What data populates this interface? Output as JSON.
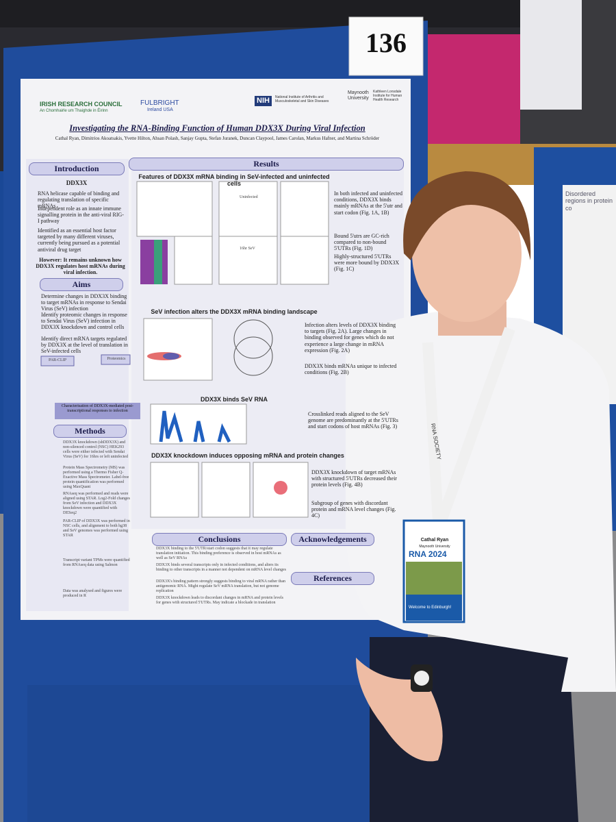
{
  "board_number": "136",
  "poster": {
    "logos": [
      "IRISH RESEARCH COUNCIL",
      "An Chomhairle um Thaighde in Éirinn",
      "FULBRIGHT",
      "Ireland USA",
      "NIH",
      "National Institute of Arthritis and Musculoskeletal and Skin Diseases",
      "Maynooth University",
      "Kathleen Lonsdale Institute for Human Health Research"
    ],
    "title": "Investigating the RNA-Binding Function of Human DDX3X During Viral Infection",
    "authors": "Cathal Ryan, Dimitrios Akoatsakis, Yvette Hilton, Ahsan Polash, Sanjay Gupta, Stefan Juranek, Duncan Claypool, James Carolan, Markus Hafner, and Martina Schröder",
    "introduction": {
      "heading": "Introduction",
      "subheading": "DDX3X",
      "bullets": [
        "RNA helicase capable of binding and regulating translation of specific mRNAs",
        "Independent role as an innate immune signalling protein in the anti-viral RIG-I pathway",
        "Identified as an essential host factor targeted by many different viruses, currently being pursued as a potential antiviral drug target"
      ],
      "question": "However: It remains unknown how DDX3X regulates host mRNAs during viral infection."
    },
    "aims": {
      "heading": "Aims",
      "bullets": [
        "Determine changes in DDX3X binding to target mRNAs in response to Sendai Virus (SeV) infection",
        "Identify proteomic changes in response to Sendai Virus (SeV) infection in DDX3X knockdown and control cells",
        "Identify direct mRNA targets regulated by DDX3X at the level of translation in SeV-infected cells"
      ],
      "boxes": [
        "PAR-CLIP",
        "Proteomics"
      ],
      "summary": "Characterisation of DDX3X-mediated post-transcriptional responses to infection"
    },
    "methods": {
      "heading": "Methods",
      "bullets": [
        "DDX3X knockdown (shDDX3X) and non-silenced control (NSC) HEK293 cells were either infected with Sendai Virus (SeV) for 16hrs or left uninfected",
        "Protein Mass Spectrometry (MS) was performed using a Thermo Fisher Q-Exactive Mass Spectrometer. Label-free protein quantification was performed using MaxQuant",
        "RNAseq was performed and reads were aligned using STAR. Log2-Fold changes from SeV infection and DDX3X knockdown were quantified with DESeq2",
        "PAR-CLIP of DDX3X was performed in NSC cells, and alignment to both hg38 and SeV genomes was performed using STAR",
        "Transcript variant TPMs were quantified from RNAseq data using Salmon",
        "Data was analysed and figures were produced in R"
      ]
    },
    "results": {
      "heading": "Results",
      "subheadings": [
        "Features of DDX3X mRNA binding in SeV-infected and uninfected cells",
        "SeV infection alters the DDX3X mRNA binding landscape",
        "DDX3X binds SeV RNA",
        "DDX3X knockdown induces opposing mRNA and protein changes"
      ],
      "panel_labels": [
        "Uninfected",
        "16hr SeV"
      ],
      "findings": [
        "In both infected and uninfected conditions, DDX3X binds mainly mRNAs at the 5'utr and start codon (Fig. 1A, 1B)",
        "Bound 5'utrs are GC-rich compared to non-bound 5'UTRs (Fig. 1D)",
        "Highly-structured 5'UTRs were more bound by DDX3X (Fig. 1C)",
        "Infection alters levels of DDX3X binding to targets (Fig. 2A). Large changes in binding observed for genes which do not experience a large change in mRNA expression (Fig. 2A)",
        "DDX3X binds mRNAs unique to infected conditions (Fig. 2B)",
        "Crosslinked reads aligned to the SeV genome are predominantly at the 5'UTRs and start codons of host mRNAs (Fig. 3)",
        "DDX3X knockdown of target mRNAs with structured 5'UTRs decreased their protein levels (Fig. 4B)",
        "Subgroup of genes with discordant protein and mRNA level changes (Fig. 4C)"
      ]
    },
    "conclusions": {
      "heading": "Conclusions",
      "bullets": [
        "DDX3X binding to the 5'UTR/start codon suggests that it may regulate translation initiation. This binding preference is observed in host mRNAs as well as SeV RNAs",
        "DDX3X binds several transcripts only in infected conditions, and alters its binding to other transcripts in a manner not dependent on mRNA level changes",
        "DDX3X's binding pattern strongly suggests binding to viral mRNA rather than antigenomic RNA. Might regulate SeV mRNA translation, but not genome replication",
        "DDX3X knockdown leads to discordant changes in mRNA and protein levels for genes with structured 5'UTRs. May indicate a blockade in translation"
      ]
    },
    "acknowledgements": {
      "heading": "Acknowledgements"
    },
    "references": {
      "heading": "References"
    }
  },
  "badge": {
    "name": "Cathal Ryan",
    "affiliation": "Maynooth University",
    "event": "RNA 2024",
    "welcome": "Welcome to Edinburgh!"
  },
  "lanyard": "RNA SOCIETY",
  "neighbor_poster": "Disordered regions in protein co"
}
